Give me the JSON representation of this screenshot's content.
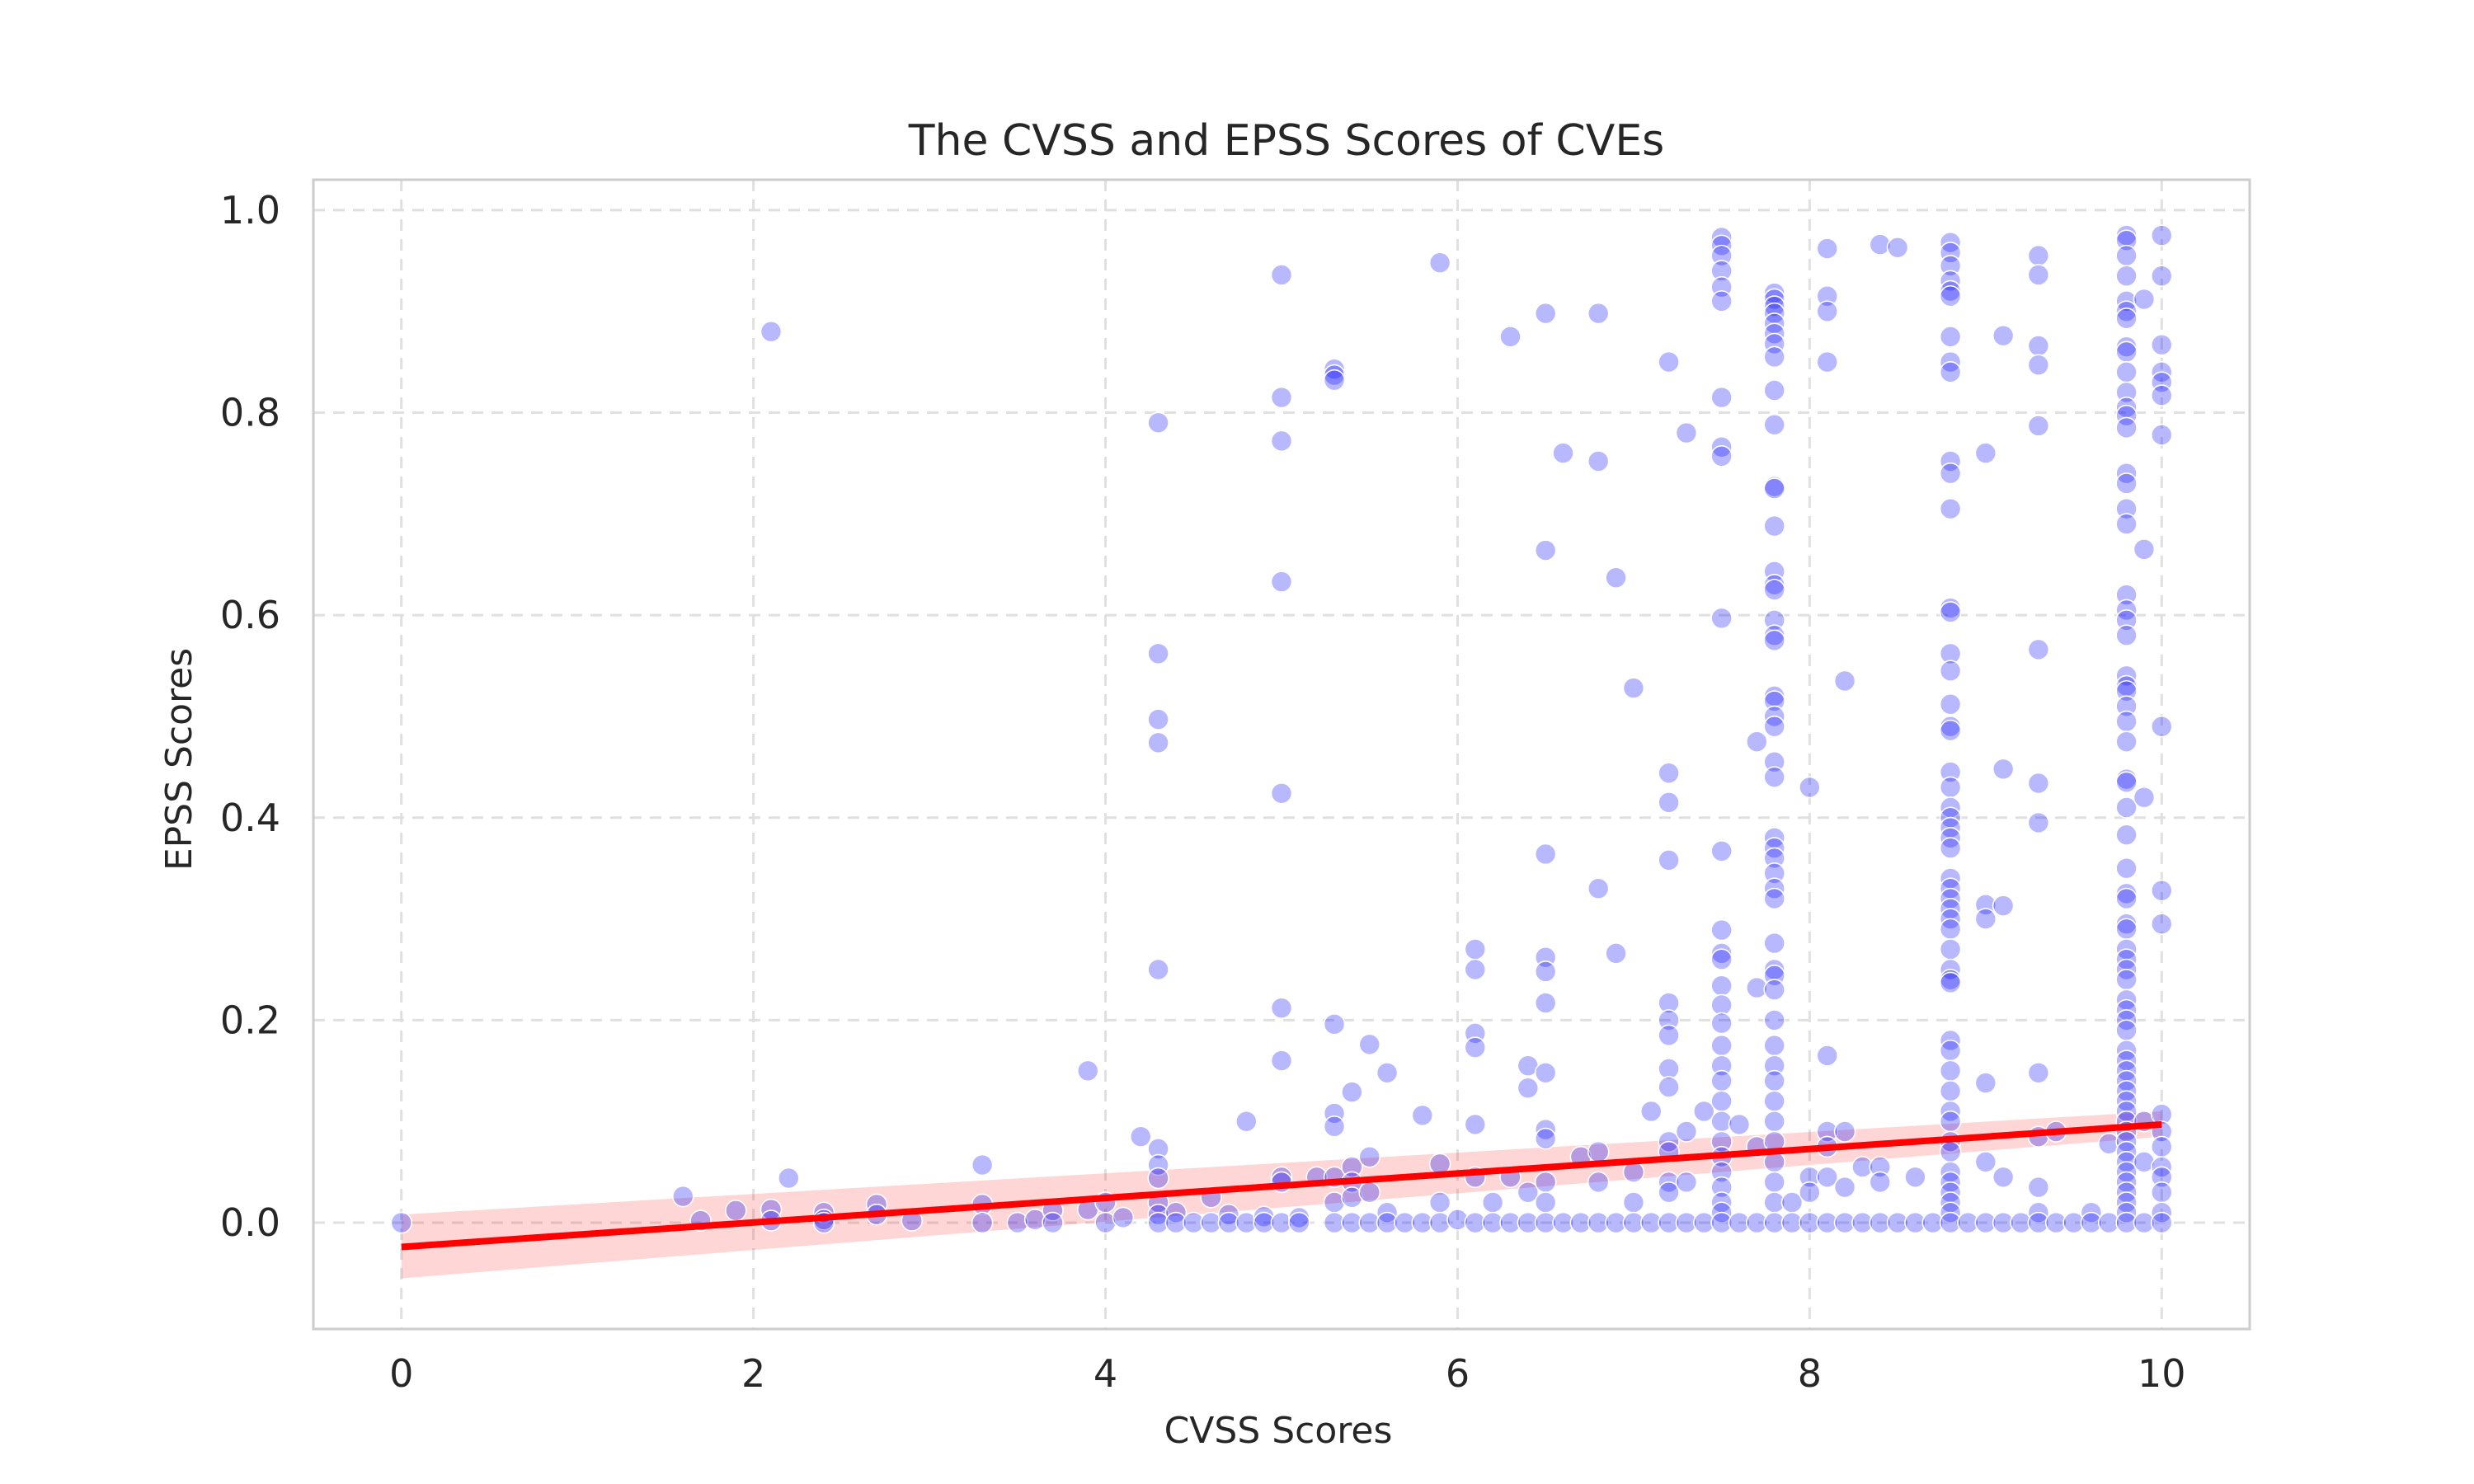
{
  "chart_data": {
    "type": "scatter",
    "title": "The CVSS and EPSS Scores of CVEs",
    "xlabel": "CVSS Scores",
    "ylabel": "EPSS Scores",
    "xlim": [
      -0.5,
      10.5
    ],
    "ylim": [
      -0.105,
      1.03
    ],
    "xticks": [
      0,
      2,
      4,
      6,
      8,
      10
    ],
    "xtick_labels": [
      "0",
      "2",
      "4",
      "6",
      "8",
      "10"
    ],
    "yticks": [
      0.0,
      0.2,
      0.4,
      0.6,
      0.8,
      1.0
    ],
    "ytick_labels": [
      "0.0",
      "0.2",
      "0.4",
      "0.6",
      "0.8",
      "1.0"
    ],
    "grid": true,
    "point_color": "#0000ff",
    "regression_color": "#ff0000",
    "regression": {
      "x0": 0,
      "y0": -0.024,
      "x1": 10,
      "y1": 0.097,
      "ci_low_at_x0": -0.055,
      "ci_high_at_x0": 0.008,
      "ci_low_at_x1": 0.085,
      "ci_high_at_x1": 0.11
    },
    "points": [
      [
        0,
        0.0
      ],
      [
        1.6,
        0.026
      ],
      [
        1.7,
        0.002
      ],
      [
        1.9,
        0.012
      ],
      [
        2.1,
        0.88
      ],
      [
        2.1,
        0.013
      ],
      [
        2.1,
        0.002
      ],
      [
        2.2,
        0.044
      ],
      [
        2.4,
        0.01
      ],
      [
        2.4,
        0.003
      ],
      [
        2.4,
        0.0
      ],
      [
        2.7,
        0.018
      ],
      [
        2.7,
        0.008
      ],
      [
        2.9,
        0.002
      ],
      [
        3.3,
        0.057
      ],
      [
        3.3,
        0.018
      ],
      [
        3.3,
        0.0
      ],
      [
        3.5,
        0.0
      ],
      [
        3.6,
        0.003
      ],
      [
        3.7,
        0.012
      ],
      [
        3.7,
        0.0
      ],
      [
        3.9,
        0.15
      ],
      [
        3.9,
        0.013
      ],
      [
        4.0,
        0.02
      ],
      [
        4.0,
        0.0
      ],
      [
        4.1,
        0.005
      ],
      [
        4.2,
        0.085
      ],
      [
        4.3,
        0.79
      ],
      [
        4.3,
        0.562
      ],
      [
        4.3,
        0.497
      ],
      [
        4.3,
        0.474
      ],
      [
        4.3,
        0.25
      ],
      [
        4.3,
        0.073
      ],
      [
        4.3,
        0.057
      ],
      [
        4.3,
        0.044
      ],
      [
        4.3,
        0.02
      ],
      [
        4.3,
        0.008
      ],
      [
        4.3,
        0.0
      ],
      [
        4.4,
        0.01
      ],
      [
        4.4,
        0.0
      ],
      [
        4.5,
        0.0
      ],
      [
        4.6,
        0.025
      ],
      [
        4.6,
        0.0
      ],
      [
        4.7,
        0.008
      ],
      [
        4.7,
        0.0
      ],
      [
        4.8,
        0.1
      ],
      [
        4.8,
        0.0
      ],
      [
        4.9,
        0.006
      ],
      [
        4.9,
        0.0
      ],
      [
        5.0,
        0.936
      ],
      [
        5.0,
        0.815
      ],
      [
        5.0,
        0.772
      ],
      [
        5.0,
        0.633
      ],
      [
        5.0,
        0.424
      ],
      [
        5.0,
        0.212
      ],
      [
        5.0,
        0.16
      ],
      [
        5.0,
        0.045
      ],
      [
        5.0,
        0.04
      ],
      [
        5.0,
        0.0
      ],
      [
        5.1,
        0.005
      ],
      [
        5.1,
        0.0
      ],
      [
        5.2,
        0.045
      ],
      [
        5.3,
        0.843
      ],
      [
        5.3,
        0.837
      ],
      [
        5.3,
        0.832
      ],
      [
        5.3,
        0.196
      ],
      [
        5.3,
        0.108
      ],
      [
        5.3,
        0.095
      ],
      [
        5.3,
        0.045
      ],
      [
        5.3,
        0.02
      ],
      [
        5.3,
        0.0
      ],
      [
        5.4,
        0.129
      ],
      [
        5.4,
        0.055
      ],
      [
        5.4,
        0.04
      ],
      [
        5.4,
        0.025
      ],
      [
        5.4,
        0.0
      ],
      [
        5.5,
        0.176
      ],
      [
        5.5,
        0.065
      ],
      [
        5.5,
        0.03
      ],
      [
        5.5,
        0.0
      ],
      [
        5.6,
        0.148
      ],
      [
        5.6,
        0.01
      ],
      [
        5.6,
        0.0
      ],
      [
        5.7,
        0.0
      ],
      [
        5.8,
        0.106
      ],
      [
        5.8,
        0.0
      ],
      [
        5.9,
        0.948
      ],
      [
        5.9,
        0.058
      ],
      [
        5.9,
        0.02
      ],
      [
        5.9,
        0.0
      ],
      [
        6.0,
        0.003
      ],
      [
        6.1,
        0.27
      ],
      [
        6.1,
        0.25
      ],
      [
        6.1,
        0.187
      ],
      [
        6.1,
        0.173
      ],
      [
        6.1,
        0.097
      ],
      [
        6.1,
        0.045
      ],
      [
        6.1,
        0.0
      ],
      [
        6.2,
        0.02
      ],
      [
        6.2,
        0.0
      ],
      [
        6.3,
        0.875
      ],
      [
        6.3,
        0.045
      ],
      [
        6.3,
        0.0
      ],
      [
        6.4,
        0.155
      ],
      [
        6.4,
        0.133
      ],
      [
        6.4,
        0.03
      ],
      [
        6.4,
        0.0
      ],
      [
        6.5,
        0.898
      ],
      [
        6.5,
        0.664
      ],
      [
        6.5,
        0.364
      ],
      [
        6.5,
        0.262
      ],
      [
        6.5,
        0.248
      ],
      [
        6.5,
        0.217
      ],
      [
        6.5,
        0.148
      ],
      [
        6.5,
        0.092
      ],
      [
        6.5,
        0.083
      ],
      [
        6.5,
        0.04
      ],
      [
        6.5,
        0.02
      ],
      [
        6.5,
        0.0
      ],
      [
        6.6,
        0.76
      ],
      [
        6.6,
        0.0
      ],
      [
        6.7,
        0.065
      ],
      [
        6.7,
        0.0
      ],
      [
        6.8,
        0.898
      ],
      [
        6.8,
        0.752
      ],
      [
        6.8,
        0.33
      ],
      [
        6.8,
        0.07
      ],
      [
        6.8,
        0.04
      ],
      [
        6.8,
        0.0
      ],
      [
        6.9,
        0.637
      ],
      [
        6.9,
        0.266
      ],
      [
        6.9,
        0.0
      ],
      [
        7.0,
        0.528
      ],
      [
        7.0,
        0.05
      ],
      [
        7.0,
        0.02
      ],
      [
        7.0,
        0.0
      ],
      [
        7.1,
        0.11
      ],
      [
        7.1,
        0.0
      ],
      [
        7.2,
        0.85
      ],
      [
        7.2,
        0.444
      ],
      [
        7.2,
        0.415
      ],
      [
        7.2,
        0.358
      ],
      [
        7.2,
        0.217
      ],
      [
        7.2,
        0.2
      ],
      [
        7.2,
        0.185
      ],
      [
        7.2,
        0.152
      ],
      [
        7.2,
        0.134
      ],
      [
        7.2,
        0.08
      ],
      [
        7.2,
        0.07
      ],
      [
        7.2,
        0.04
      ],
      [
        7.2,
        0.03
      ],
      [
        7.2,
        0.0
      ],
      [
        7.3,
        0.78
      ],
      [
        7.3,
        0.09
      ],
      [
        7.3,
        0.04
      ],
      [
        7.3,
        0.0
      ],
      [
        7.4,
        0.11
      ],
      [
        7.4,
        0.0
      ],
      [
        7.5,
        0.973
      ],
      [
        7.5,
        0.965
      ],
      [
        7.5,
        0.955
      ],
      [
        7.5,
        0.94
      ],
      [
        7.5,
        0.924
      ],
      [
        7.5,
        0.91
      ],
      [
        7.5,
        0.815
      ],
      [
        7.5,
        0.766
      ],
      [
        7.5,
        0.757
      ],
      [
        7.5,
        0.597
      ],
      [
        7.5,
        0.367
      ],
      [
        7.5,
        0.289
      ],
      [
        7.5,
        0.266
      ],
      [
        7.5,
        0.26
      ],
      [
        7.5,
        0.234
      ],
      [
        7.5,
        0.215
      ],
      [
        7.5,
        0.197
      ],
      [
        7.5,
        0.175
      ],
      [
        7.5,
        0.155
      ],
      [
        7.5,
        0.14
      ],
      [
        7.5,
        0.12
      ],
      [
        7.5,
        0.1
      ],
      [
        7.5,
        0.08
      ],
      [
        7.5,
        0.065
      ],
      [
        7.5,
        0.05
      ],
      [
        7.5,
        0.035
      ],
      [
        7.5,
        0.02
      ],
      [
        7.5,
        0.01
      ],
      [
        7.5,
        0.0
      ],
      [
        7.6,
        0.097
      ],
      [
        7.6,
        0.0
      ],
      [
        7.7,
        0.475
      ],
      [
        7.7,
        0.232
      ],
      [
        7.7,
        0.075
      ],
      [
        7.7,
        0.0
      ],
      [
        7.8,
        0.918
      ],
      [
        7.8,
        0.912
      ],
      [
        7.8,
        0.905
      ],
      [
        7.8,
        0.898
      ],
      [
        7.8,
        0.888
      ],
      [
        7.8,
        0.878
      ],
      [
        7.8,
        0.868
      ],
      [
        7.8,
        0.855
      ],
      [
        7.8,
        0.822
      ],
      [
        7.8,
        0.788
      ],
      [
        7.8,
        0.727
      ],
      [
        7.8,
        0.725
      ],
      [
        7.8,
        0.688
      ],
      [
        7.8,
        0.643
      ],
      [
        7.8,
        0.63
      ],
      [
        7.8,
        0.625
      ],
      [
        7.8,
        0.595
      ],
      [
        7.8,
        0.58
      ],
      [
        7.8,
        0.575
      ],
      [
        7.8,
        0.52
      ],
      [
        7.8,
        0.515
      ],
      [
        7.8,
        0.5
      ],
      [
        7.8,
        0.49
      ],
      [
        7.8,
        0.455
      ],
      [
        7.8,
        0.44
      ],
      [
        7.8,
        0.38
      ],
      [
        7.8,
        0.37
      ],
      [
        7.8,
        0.36
      ],
      [
        7.8,
        0.345
      ],
      [
        7.8,
        0.33
      ],
      [
        7.8,
        0.32
      ],
      [
        7.8,
        0.276
      ],
      [
        7.8,
        0.25
      ],
      [
        7.8,
        0.244
      ],
      [
        7.8,
        0.23
      ],
      [
        7.8,
        0.2
      ],
      [
        7.8,
        0.175
      ],
      [
        7.8,
        0.155
      ],
      [
        7.8,
        0.14
      ],
      [
        7.8,
        0.12
      ],
      [
        7.8,
        0.1
      ],
      [
        7.8,
        0.08
      ],
      [
        7.8,
        0.06
      ],
      [
        7.8,
        0.04
      ],
      [
        7.8,
        0.02
      ],
      [
        7.8,
        0.0
      ],
      [
        7.9,
        0.02
      ],
      [
        7.9,
        0.0
      ],
      [
        8.0,
        0.43
      ],
      [
        8.0,
        0.045
      ],
      [
        8.0,
        0.03
      ],
      [
        8.0,
        0.0
      ],
      [
        8.1,
        0.962
      ],
      [
        8.1,
        0.915
      ],
      [
        8.1,
        0.9
      ],
      [
        8.1,
        0.85
      ],
      [
        8.1,
        0.165
      ],
      [
        8.1,
        0.09
      ],
      [
        8.1,
        0.075
      ],
      [
        8.1,
        0.045
      ],
      [
        8.1,
        0.0
      ],
      [
        8.2,
        0.535
      ],
      [
        8.2,
        0.09
      ],
      [
        8.2,
        0.035
      ],
      [
        8.2,
        0.0
      ],
      [
        8.3,
        0.055
      ],
      [
        8.3,
        0.0
      ],
      [
        8.4,
        0.966
      ],
      [
        8.4,
        0.055
      ],
      [
        8.4,
        0.04
      ],
      [
        8.4,
        0.0
      ],
      [
        8.5,
        0.963
      ],
      [
        8.5,
        0.0
      ],
      [
        8.6,
        0.045
      ],
      [
        8.6,
        0.0
      ],
      [
        8.7,
        0.0
      ],
      [
        8.8,
        0.968
      ],
      [
        8.8,
        0.958
      ],
      [
        8.8,
        0.945
      ],
      [
        8.8,
        0.93
      ],
      [
        8.8,
        0.92
      ],
      [
        8.8,
        0.915
      ],
      [
        8.8,
        0.875
      ],
      [
        8.8,
        0.85
      ],
      [
        8.8,
        0.84
      ],
      [
        8.8,
        0.752
      ],
      [
        8.8,
        0.74
      ],
      [
        8.8,
        0.705
      ],
      [
        8.8,
        0.607
      ],
      [
        8.8,
        0.603
      ],
      [
        8.8,
        0.562
      ],
      [
        8.8,
        0.545
      ],
      [
        8.8,
        0.512
      ],
      [
        8.8,
        0.49
      ],
      [
        8.8,
        0.486
      ],
      [
        8.8,
        0.445
      ],
      [
        8.8,
        0.43
      ],
      [
        8.8,
        0.41
      ],
      [
        8.8,
        0.4
      ],
      [
        8.8,
        0.39
      ],
      [
        8.8,
        0.38
      ],
      [
        8.8,
        0.37
      ],
      [
        8.8,
        0.34
      ],
      [
        8.8,
        0.33
      ],
      [
        8.8,
        0.32
      ],
      [
        8.8,
        0.31
      ],
      [
        8.8,
        0.3
      ],
      [
        8.8,
        0.29
      ],
      [
        8.8,
        0.27
      ],
      [
        8.8,
        0.25
      ],
      [
        8.8,
        0.24
      ],
      [
        8.8,
        0.237
      ],
      [
        8.8,
        0.18
      ],
      [
        8.8,
        0.17
      ],
      [
        8.8,
        0.15
      ],
      [
        8.8,
        0.13
      ],
      [
        8.8,
        0.11
      ],
      [
        8.8,
        0.1
      ],
      [
        8.8,
        0.08
      ],
      [
        8.8,
        0.07
      ],
      [
        8.8,
        0.05
      ],
      [
        8.8,
        0.04
      ],
      [
        8.8,
        0.03
      ],
      [
        8.8,
        0.02
      ],
      [
        8.8,
        0.01
      ],
      [
        8.8,
        0.0
      ],
      [
        8.9,
        0.0
      ],
      [
        9.0,
        0.76
      ],
      [
        9.0,
        0.314
      ],
      [
        9.0,
        0.3
      ],
      [
        9.0,
        0.138
      ],
      [
        9.0,
        0.06
      ],
      [
        9.0,
        0.0
      ],
      [
        9.1,
        0.876
      ],
      [
        9.1,
        0.448
      ],
      [
        9.1,
        0.313
      ],
      [
        9.1,
        0.045
      ],
      [
        9.1,
        0.0
      ],
      [
        9.2,
        0.0
      ],
      [
        9.3,
        0.955
      ],
      [
        9.3,
        0.936
      ],
      [
        9.3,
        0.866
      ],
      [
        9.3,
        0.847
      ],
      [
        9.3,
        0.787
      ],
      [
        9.3,
        0.566
      ],
      [
        9.3,
        0.434
      ],
      [
        9.3,
        0.395
      ],
      [
        9.3,
        0.148
      ],
      [
        9.3,
        0.085
      ],
      [
        9.3,
        0.035
      ],
      [
        9.3,
        0.01
      ],
      [
        9.3,
        0.0
      ],
      [
        9.4,
        0.09
      ],
      [
        9.4,
        0.0
      ],
      [
        9.5,
        0.0
      ],
      [
        9.6,
        0.01
      ],
      [
        9.6,
        0.0
      ],
      [
        9.7,
        0.078
      ],
      [
        9.7,
        0.0
      ],
      [
        9.8,
        0.975
      ],
      [
        9.8,
        0.97
      ],
      [
        9.8,
        0.955
      ],
      [
        9.8,
        0.935
      ],
      [
        9.8,
        0.91
      ],
      [
        9.8,
        0.9
      ],
      [
        9.8,
        0.893
      ],
      [
        9.8,
        0.865
      ],
      [
        9.8,
        0.86
      ],
      [
        9.8,
        0.84
      ],
      [
        9.8,
        0.82
      ],
      [
        9.8,
        0.805
      ],
      [
        9.8,
        0.797
      ],
      [
        9.8,
        0.785
      ],
      [
        9.8,
        0.74
      ],
      [
        9.8,
        0.73
      ],
      [
        9.8,
        0.705
      ],
      [
        9.8,
        0.69
      ],
      [
        9.8,
        0.62
      ],
      [
        9.8,
        0.605
      ],
      [
        9.8,
        0.595
      ],
      [
        9.8,
        0.58
      ],
      [
        9.8,
        0.54
      ],
      [
        9.8,
        0.53
      ],
      [
        9.8,
        0.525
      ],
      [
        9.8,
        0.51
      ],
      [
        9.8,
        0.495
      ],
      [
        9.8,
        0.475
      ],
      [
        9.8,
        0.438
      ],
      [
        9.8,
        0.435
      ],
      [
        9.8,
        0.41
      ],
      [
        9.8,
        0.383
      ],
      [
        9.8,
        0.35
      ],
      [
        9.8,
        0.325
      ],
      [
        9.8,
        0.32
      ],
      [
        9.8,
        0.295
      ],
      [
        9.8,
        0.29
      ],
      [
        9.8,
        0.27
      ],
      [
        9.8,
        0.26
      ],
      [
        9.8,
        0.25
      ],
      [
        9.8,
        0.24
      ],
      [
        9.8,
        0.22
      ],
      [
        9.8,
        0.21
      ],
      [
        9.8,
        0.2
      ],
      [
        9.8,
        0.19
      ],
      [
        9.8,
        0.17
      ],
      [
        9.8,
        0.16
      ],
      [
        9.8,
        0.15
      ],
      [
        9.8,
        0.14
      ],
      [
        9.8,
        0.13
      ],
      [
        9.8,
        0.12
      ],
      [
        9.8,
        0.11
      ],
      [
        9.8,
        0.1
      ],
      [
        9.8,
        0.09
      ],
      [
        9.8,
        0.08
      ],
      [
        9.8,
        0.07
      ],
      [
        9.8,
        0.06
      ],
      [
        9.8,
        0.05
      ],
      [
        9.8,
        0.04
      ],
      [
        9.8,
        0.03
      ],
      [
        9.8,
        0.02
      ],
      [
        9.8,
        0.01
      ],
      [
        9.8,
        0.0
      ],
      [
        9.9,
        0.912
      ],
      [
        9.9,
        0.665
      ],
      [
        9.9,
        0.42
      ],
      [
        9.9,
        0.1
      ],
      [
        9.9,
        0.06
      ],
      [
        9.9,
        0.0
      ],
      [
        10.0,
        0.975
      ],
      [
        10.0,
        0.935
      ],
      [
        10.0,
        0.867
      ],
      [
        10.0,
        0.84
      ],
      [
        10.0,
        0.83
      ],
      [
        10.0,
        0.817
      ],
      [
        10.0,
        0.778
      ],
      [
        10.0,
        0.49
      ],
      [
        10.0,
        0.328
      ],
      [
        10.0,
        0.295
      ],
      [
        10.0,
        0.107
      ],
      [
        10.0,
        0.09
      ],
      [
        10.0,
        0.075
      ],
      [
        10.0,
        0.055
      ],
      [
        10.0,
        0.045
      ],
      [
        10.0,
        0.03
      ],
      [
        10.0,
        0.01
      ],
      [
        10.0,
        0.0
      ]
    ]
  }
}
